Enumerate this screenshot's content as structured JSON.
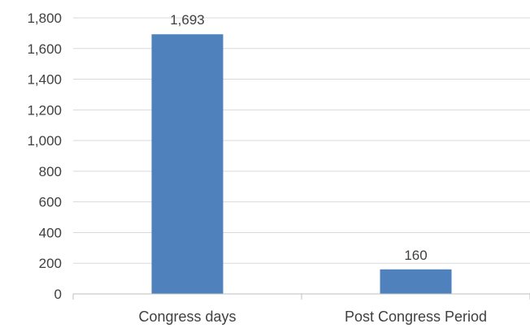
{
  "chart_data": {
    "type": "bar",
    "categories": [
      "Congress days",
      "Post Congress Period"
    ],
    "values": [
      1693,
      160
    ],
    "data_labels": [
      "1,693",
      "160"
    ],
    "ylim": [
      0,
      1800
    ],
    "yticks": [
      0,
      200,
      400,
      600,
      800,
      1000,
      1200,
      1400,
      1600,
      1800
    ],
    "ytick_labels": [
      "0",
      "200",
      "400",
      "600",
      "800",
      "1,000",
      "1,200",
      "1,400",
      "1,600",
      "1,800"
    ],
    "grid": true,
    "legend": "none",
    "bar_color": "#4f81bd",
    "title": "",
    "xlabel": "",
    "ylabel": ""
  }
}
